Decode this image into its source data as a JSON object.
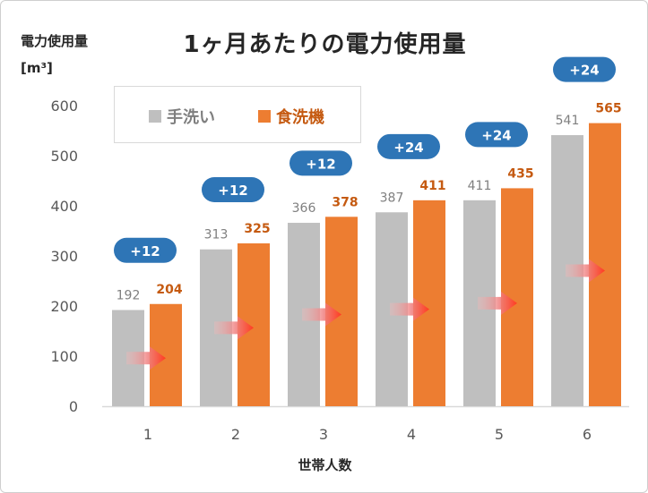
{
  "chart_data": {
    "type": "bar",
    "title": "1ヶ月あたりの電力使用量",
    "ylabel": "電力使用量",
    "yunit": "[m³]",
    "xlabel": "世帯人数",
    "categories": [
      "1",
      "2",
      "3",
      "4",
      "5",
      "6"
    ],
    "ylim": [
      0,
      600
    ],
    "yticks": [
      "0",
      "100",
      "200",
      "300",
      "400",
      "500",
      "600"
    ],
    "series": [
      {
        "name": "手洗い",
        "values": [
          192,
          313,
          366,
          387,
          411,
          541
        ],
        "color": "#bfbfbf",
        "label_color": "#7f7f7f"
      },
      {
        "name": "食洗機",
        "values": [
          204,
          325,
          378,
          411,
          435,
          565
        ],
        "color": "#ed7d31",
        "label_color": "#c55a11"
      }
    ],
    "differences": [
      "+12",
      "+12",
      "+12",
      "+24",
      "+24",
      "+24"
    ],
    "difference_color": "#2e75b6",
    "arrow_icon": "right-arrow-icon",
    "grid": false,
    "legend_position": "top-left"
  }
}
